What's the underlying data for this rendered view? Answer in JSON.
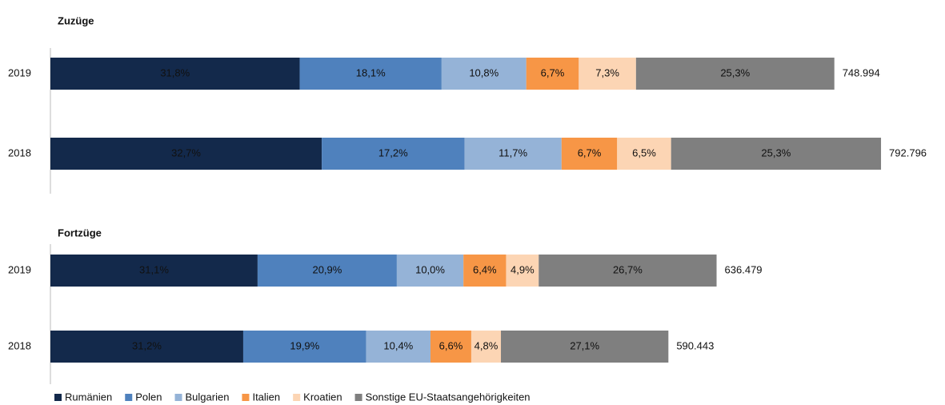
{
  "chart_data": {
    "type": "bar",
    "stacked": true,
    "orientation": "horizontal",
    "series": [
      {
        "name": "Rumänien",
        "color": "#13294b"
      },
      {
        "name": "Polen",
        "color": "#4f81bd"
      },
      {
        "name": "Bulgarien",
        "color": "#95b3d7"
      },
      {
        "name": "Italien",
        "color": "#f79646"
      },
      {
        "name": "Kroatien",
        "color": "#fcd5b4"
      },
      {
        "name": "Sonstige EU-Staatsangehörigkeiten",
        "color": "#7f7f7f"
      }
    ],
    "panels": [
      {
        "title": "Zuzüge",
        "categories": [
          "2019",
          "2018"
        ],
        "series": [
          {
            "values": [
              31.8,
              32.7
            ],
            "value_labels": [
              "31,8%",
              "32,7%"
            ]
          },
          {
            "values": [
              18.1,
              17.2
            ],
            "value_labels": [
              "18,1%",
              "17,2%"
            ]
          },
          {
            "values": [
              10.8,
              11.7
            ],
            "value_labels": [
              "10,8%",
              "11,7%"
            ]
          },
          {
            "values": [
              6.7,
              6.7
            ],
            "value_labels": [
              "6,7%",
              "6,7%"
            ]
          },
          {
            "values": [
              7.3,
              6.5
            ],
            "value_labels": [
              "7,3%",
              "6,5%"
            ]
          },
          {
            "values": [
              25.3,
              25.3
            ],
            "value_labels": [
              "25,3%",
              "25,3%"
            ]
          }
        ],
        "totals": {
          "values": [
            748994,
            792796
          ],
          "value_labels": [
            "748.994",
            "792.796"
          ]
        }
      },
      {
        "title": "Fortzüge",
        "categories": [
          "2019",
          "2018"
        ],
        "series": [
          {
            "values": [
              31.1,
              31.2
            ],
            "value_labels": [
              "31,1%",
              "31,2%"
            ]
          },
          {
            "values": [
              20.9,
              19.9
            ],
            "value_labels": [
              "20,9%",
              "19,9%"
            ]
          },
          {
            "values": [
              10.0,
              10.4
            ],
            "value_labels": [
              "10,0%",
              "10,4%"
            ]
          },
          {
            "values": [
              6.4,
              6.6
            ],
            "value_labels": [
              "6,4%",
              "6,6%"
            ]
          },
          {
            "values": [
              4.9,
              4.8
            ],
            "value_labels": [
              "4,9%",
              "4,8%"
            ]
          },
          {
            "values": [
              26.7,
              27.1
            ],
            "value_labels": [
              "26,7%",
              "27,1%"
            ]
          }
        ],
        "totals": {
          "values": [
            636479,
            590443
          ],
          "value_labels": [
            "636.479",
            "590.443"
          ]
        }
      }
    ]
  }
}
